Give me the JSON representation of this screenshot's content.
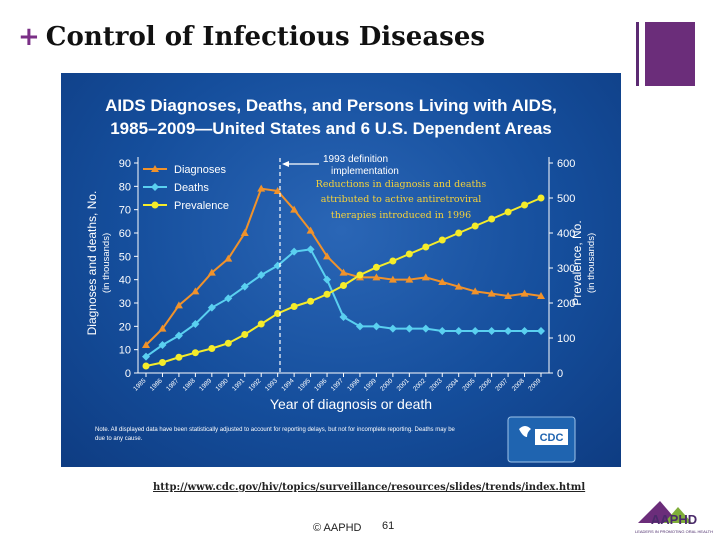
{
  "slide": {
    "title_plus": "+",
    "title": "Control of Infectious Diseases",
    "url": "http://www.cdc.gov/hiv/topics/surveillance/resources/slides/trends/index.html",
    "footer": "© AAPHD",
    "page_number": "61",
    "logo_text": "AAPHD",
    "logo_subtitle": "LEADERS IN PROMOTING ORAL HEALTH",
    "colors": {
      "accent": "#6b2d7a",
      "chart_bg": "#1a55a3"
    }
  },
  "chart_data": {
    "type": "line",
    "title_line1": "AIDS Diagnoses, Deaths, and Persons Living with AIDS,",
    "title_line2": "1985–2009—United States and 6 U.S. Dependent Areas",
    "xlabel": "Year of diagnosis or death",
    "ylabel_left": "Diagnoses and deaths, No.",
    "ylabel_left_unit": "(in thousands)",
    "ylabel_right": "Prevalence, No.",
    "ylabel_right_unit": "(in thousands)",
    "ylim_left": [
      0,
      90
    ],
    "yticks_left": [
      0,
      10,
      20,
      30,
      40,
      50,
      60,
      70,
      80,
      90
    ],
    "ylim_right": [
      0,
      600
    ],
    "yticks_right": [
      0,
      100,
      200,
      300,
      400,
      500,
      600
    ],
    "categories": [
      "1985",
      "1986",
      "1987",
      "1988",
      "1989",
      "1990",
      "1991",
      "1992",
      "1993",
      "1994",
      "1995",
      "1996",
      "1997",
      "1998",
      "1999",
      "2000",
      "2001",
      "2002",
      "2003",
      "2004",
      "2005",
      "2006",
      "2007",
      "2008",
      "2009"
    ],
    "series": [
      {
        "name": "Diagnoses",
        "axis": "left",
        "color": "#f0922b",
        "marker": "triangle",
        "values": [
          12,
          19,
          29,
          35,
          43,
          49,
          60,
          79,
          78,
          70,
          61,
          50,
          43,
          41,
          41,
          40,
          40,
          41,
          39,
          37,
          35,
          34,
          33,
          34,
          33
        ]
      },
      {
        "name": "Deaths",
        "axis": "left",
        "color": "#5ad0f0",
        "marker": "diamond",
        "values": [
          7,
          12,
          16,
          21,
          28,
          32,
          37,
          42,
          46,
          52,
          53,
          40,
          24,
          20,
          20,
          19,
          19,
          19,
          18,
          18,
          18,
          18,
          18,
          18,
          18
        ]
      },
      {
        "name": "Prevalence",
        "axis": "right",
        "color": "#f5ec2a",
        "marker": "circle",
        "values": [
          20,
          30,
          45,
          58,
          70,
          85,
          110,
          140,
          170,
          190,
          205,
          225,
          250,
          280,
          302,
          320,
          340,
          360,
          380,
          400,
          420,
          440,
          460,
          480,
          500
        ]
      }
    ],
    "annotations": {
      "definition_line1": "1993 definition",
      "definition_line2": "implementation",
      "reductions_line1": "Reductions in diagnosis and deaths",
      "reductions_line2": "attributed to active antiretroviral",
      "reductions_line3": "therapies introduced in 1996"
    },
    "note": "Note. All displayed data have been statistically adjusted to account for reporting delays, but not for incomplete reporting. Deaths may be",
    "note_line2": "due to any cause.",
    "cdc_logo_text": "CDC",
    "legend_position": "top-left",
    "grid": false
  }
}
